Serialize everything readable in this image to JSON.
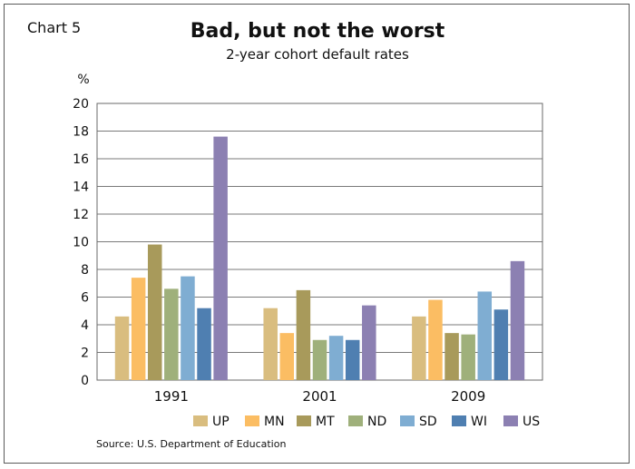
{
  "chart_label": "Chart 5",
  "source": "Source: U.S. Department of Education",
  "chart_data": {
    "type": "bar",
    "title": "Bad, but not the worst",
    "subtitle": "2-year cohort default rates",
    "ylabel": "%",
    "xlabel": "",
    "ylim": [
      0,
      20
    ],
    "yticks": [
      "0",
      "2",
      "4",
      "6",
      "8",
      "10",
      "12",
      "14",
      "16",
      "18",
      "20"
    ],
    "grid": true,
    "legend_position": "bottom",
    "categories": [
      "1991",
      "2001",
      "2009"
    ],
    "series": [
      {
        "name": "UP",
        "color": "#d9bd7f",
        "values": [
          4.6,
          5.2,
          4.6
        ]
      },
      {
        "name": "MN",
        "color": "#fbbd63",
        "values": [
          7.4,
          3.4,
          5.8
        ]
      },
      {
        "name": "MT",
        "color": "#a89a5b",
        "values": [
          9.8,
          6.5,
          3.4
        ]
      },
      {
        "name": "ND",
        "color": "#9fb07b",
        "values": [
          6.6,
          2.9,
          3.3
        ]
      },
      {
        "name": "SD",
        "color": "#7fadd2",
        "values": [
          7.5,
          3.2,
          6.4
        ]
      },
      {
        "name": "WI",
        "color": "#4f7fb1",
        "values": [
          5.2,
          2.9,
          5.1
        ]
      },
      {
        "name": "US",
        "color": "#8c80b2",
        "values": [
          17.6,
          5.4,
          8.6
        ]
      }
    ]
  }
}
